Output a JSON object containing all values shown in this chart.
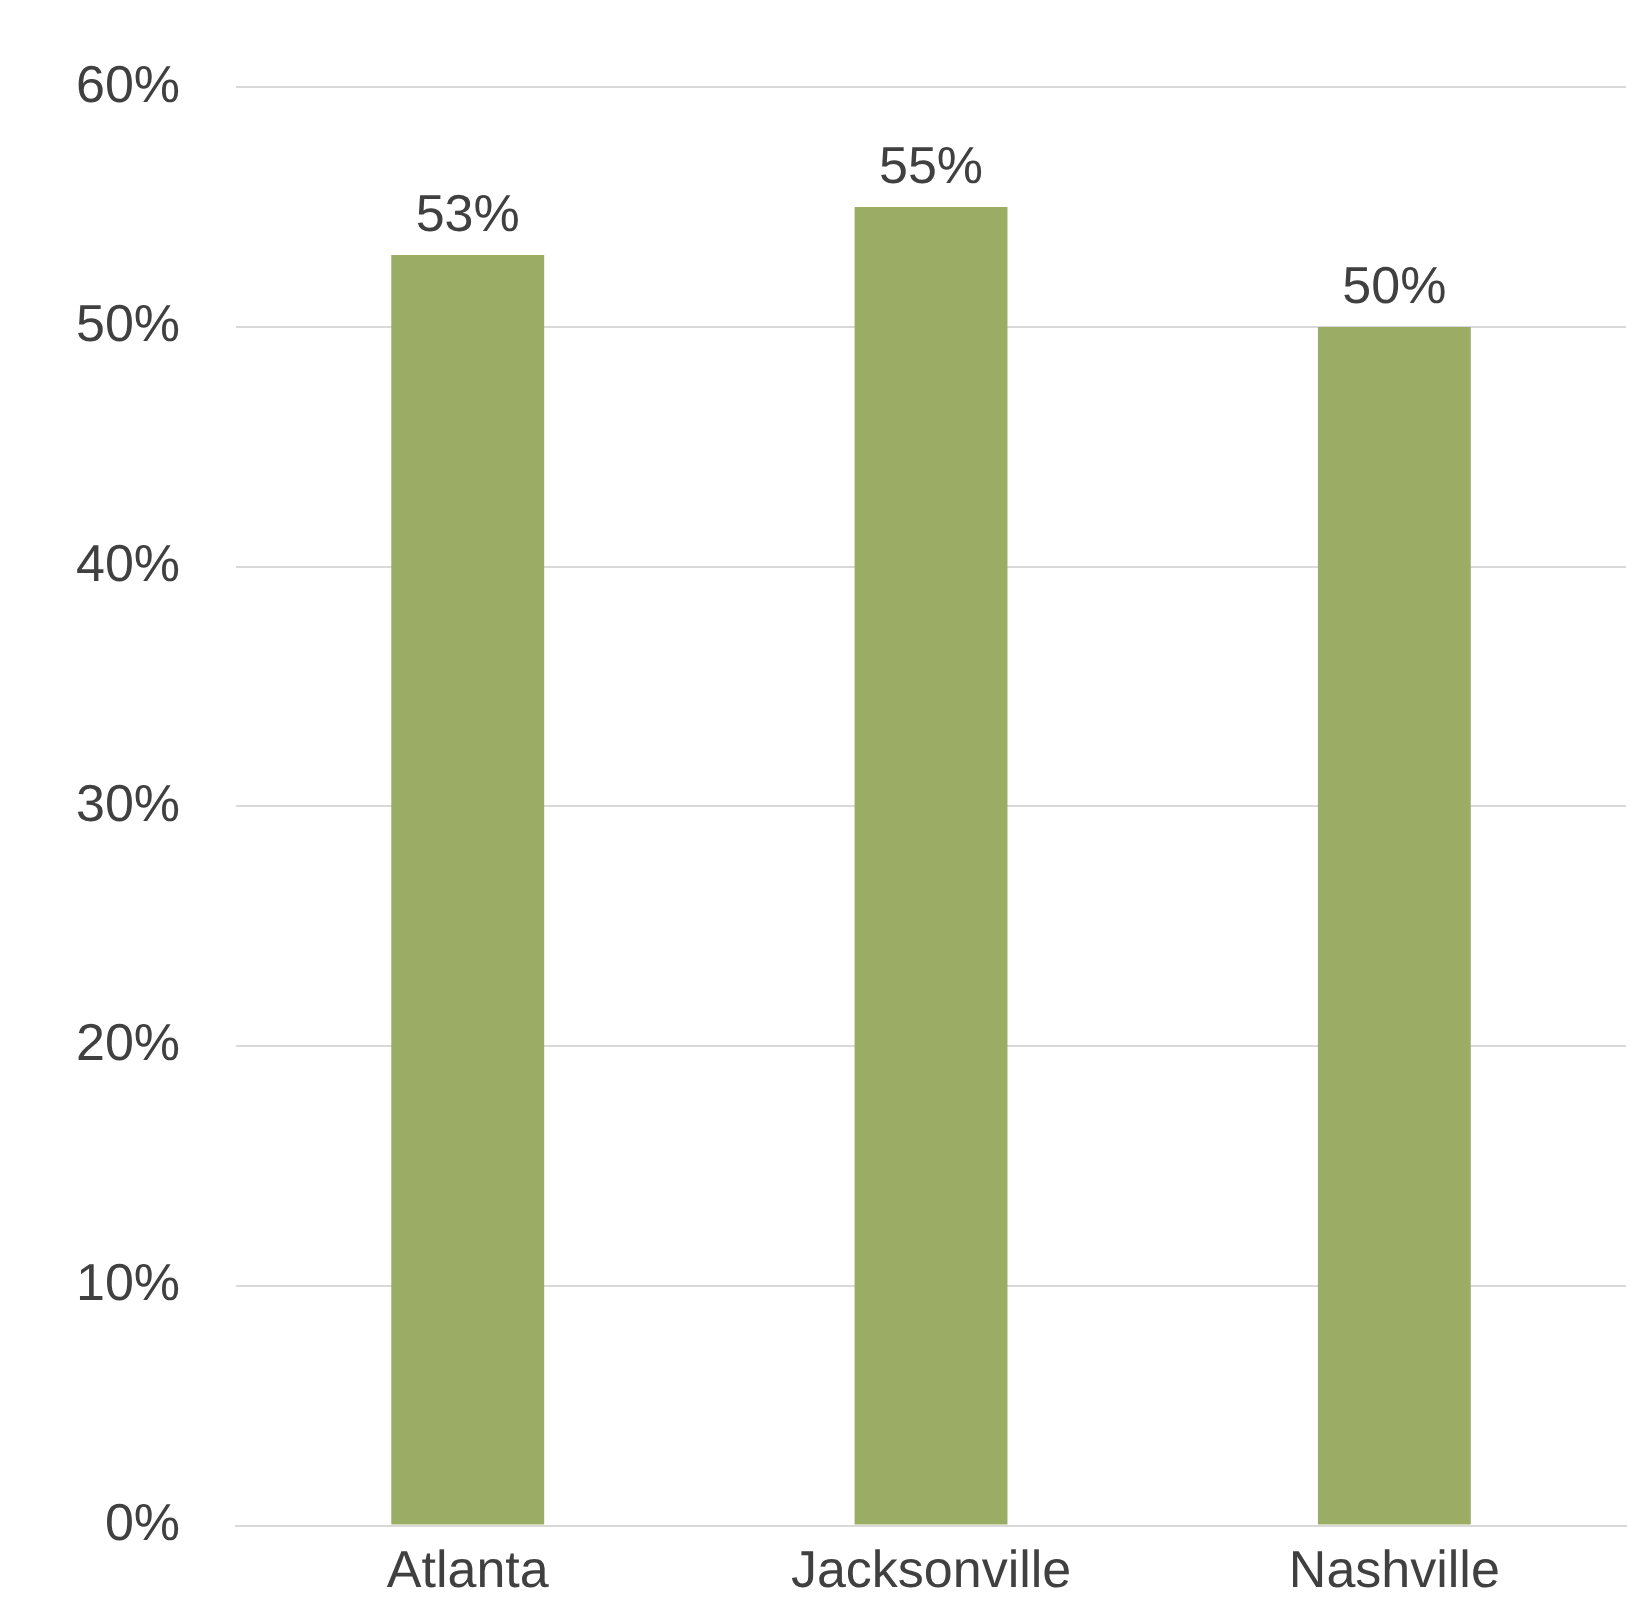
{
  "chart_data": {
    "type": "bar",
    "categories": [
      "Atlanta",
      "Jacksonville",
      "Nashville"
    ],
    "values": [
      53,
      55,
      50
    ],
    "value_labels": [
      "53%",
      "55%",
      "50%"
    ],
    "color": "#9bad65",
    "ylim": [
      0,
      60
    ],
    "yticks": [
      {
        "value": 0,
        "label": "0%"
      },
      {
        "value": 10,
        "label": "10%"
      },
      {
        "value": 20,
        "label": "20%"
      },
      {
        "value": 30,
        "label": "30%"
      },
      {
        "value": 40,
        "label": "40%"
      },
      {
        "value": 50,
        "label": "50%"
      },
      {
        "value": 60,
        "label": "60%"
      }
    ],
    "grid": "y",
    "legend": false
  }
}
